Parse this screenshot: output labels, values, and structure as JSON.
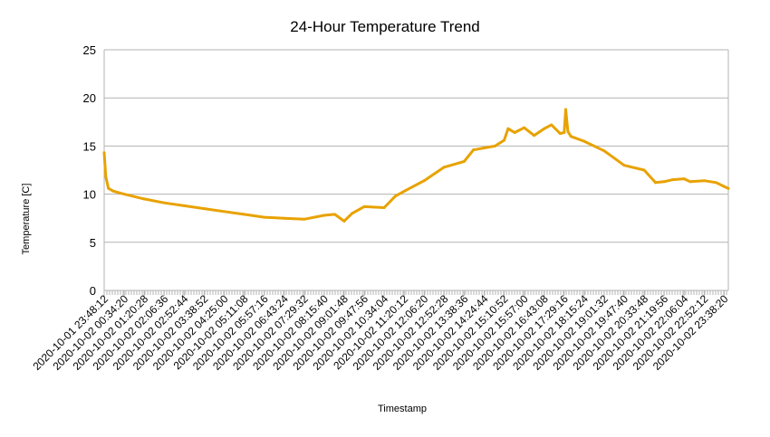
{
  "chart_data": {
    "type": "line",
    "title": "24-Hour Temperature Trend",
    "xlabel": "Timestamp",
    "ylabel": "Temperature [C]",
    "ylim": [
      0,
      25
    ],
    "yticks": [
      0,
      5,
      10,
      15,
      20,
      25
    ],
    "grid": "horizontal",
    "legend": "none",
    "color": "#e8a202",
    "x_tick_labels": [
      "2020-10-01 23:48:12",
      "2020-10-02 00:34:20",
      "2020-10-02 01:20:28",
      "2020-10-02 02:06:36",
      "2020-10-02 02:52:44",
      "2020-10-02 03:38:52",
      "2020-10-02 04:25:00",
      "2020-10-02 05:11:08",
      "2020-10-02 05:57:16",
      "2020-10-02 06:43:24",
      "2020-10-02 07:29:32",
      "2020-10-02 08:15:40",
      "2020-10-02 09:01:48",
      "2020-10-02 09:47:56",
      "2020-10-02 10:34:04",
      "2020-10-02 11:20:12",
      "2020-10-02 12:06:20",
      "2020-10-02 12:52:28",
      "2020-10-02 13:38:36",
      "2020-10-02 14:24:44",
      "2020-10-02 15:10:52",
      "2020-10-02 15:57:00",
      "2020-10-02 16:43:08",
      "2020-10-02 17:29:16",
      "2020-10-02 18:15:24",
      "2020-10-02 19:01:32",
      "2020-10-02 19:47:40",
      "2020-10-02 20:33:48",
      "2020-10-02 21:19:56",
      "2020-10-02 22:06:04",
      "2020-10-02 22:52:12",
      "2020-10-02 23:38:20"
    ],
    "series": [
      {
        "x": [
          "2020-10-01 23:48:12",
          "2020-10-01 23:52:00",
          "2020-10-01 23:58:00",
          "2020-10-02 00:10:00",
          "2020-10-02 00:34:20",
          "2020-10-02 01:20:28",
          "2020-10-02 02:06:36",
          "2020-10-02 02:52:44",
          "2020-10-02 03:38:52",
          "2020-10-02 04:25:00",
          "2020-10-02 05:11:08",
          "2020-10-02 05:57:16",
          "2020-10-02 06:43:24",
          "2020-10-02 07:29:32",
          "2020-10-02 08:15:40",
          "2020-10-02 08:40:00",
          "2020-10-02 09:01:48",
          "2020-10-02 09:20:00",
          "2020-10-02 09:47:56",
          "2020-10-02 10:34:04",
          "2020-10-02 11:00:00",
          "2020-10-02 11:20:12",
          "2020-10-02 12:06:20",
          "2020-10-02 12:52:28",
          "2020-10-02 13:38:36",
          "2020-10-02 14:00:00",
          "2020-10-02 14:24:44",
          "2020-10-02 14:50:00",
          "2020-10-02 15:10:52",
          "2020-10-02 15:20:00",
          "2020-10-02 15:35:00",
          "2020-10-02 15:57:00",
          "2020-10-02 16:20:00",
          "2020-10-02 16:43:08",
          "2020-10-02 17:00:00",
          "2020-10-02 17:20:00",
          "2020-10-02 17:29:16",
          "2020-10-02 17:33:00",
          "2020-10-02 17:38:00",
          "2020-10-02 17:45:00",
          "2020-10-02 18:15:24",
          "2020-10-02 19:01:32",
          "2020-10-02 19:47:40",
          "2020-10-02 20:33:48",
          "2020-10-02 21:00:00",
          "2020-10-02 21:19:56",
          "2020-10-02 21:40:00",
          "2020-10-02 22:06:04",
          "2020-10-02 22:20:00",
          "2020-10-02 22:52:12",
          "2020-10-02 23:20:00",
          "2020-10-02 23:38:20",
          "2020-10-02 23:48:00"
        ],
        "values": [
          14.3,
          11.8,
          10.6,
          10.3,
          10.0,
          9.5,
          9.1,
          8.8,
          8.5,
          8.2,
          7.9,
          7.6,
          7.5,
          7.4,
          7.8,
          7.9,
          7.2,
          8.0,
          8.7,
          8.6,
          9.8,
          10.3,
          11.4,
          12.8,
          13.4,
          14.6,
          14.8,
          15.0,
          15.6,
          16.8,
          16.4,
          16.9,
          16.1,
          16.8,
          17.2,
          16.3,
          16.4,
          18.8,
          16.5,
          16.0,
          15.5,
          14.5,
          13.0,
          12.5,
          11.2,
          11.3,
          11.5,
          11.6,
          11.3,
          11.4,
          11.2,
          10.8,
          10.6
        ]
      }
    ]
  }
}
